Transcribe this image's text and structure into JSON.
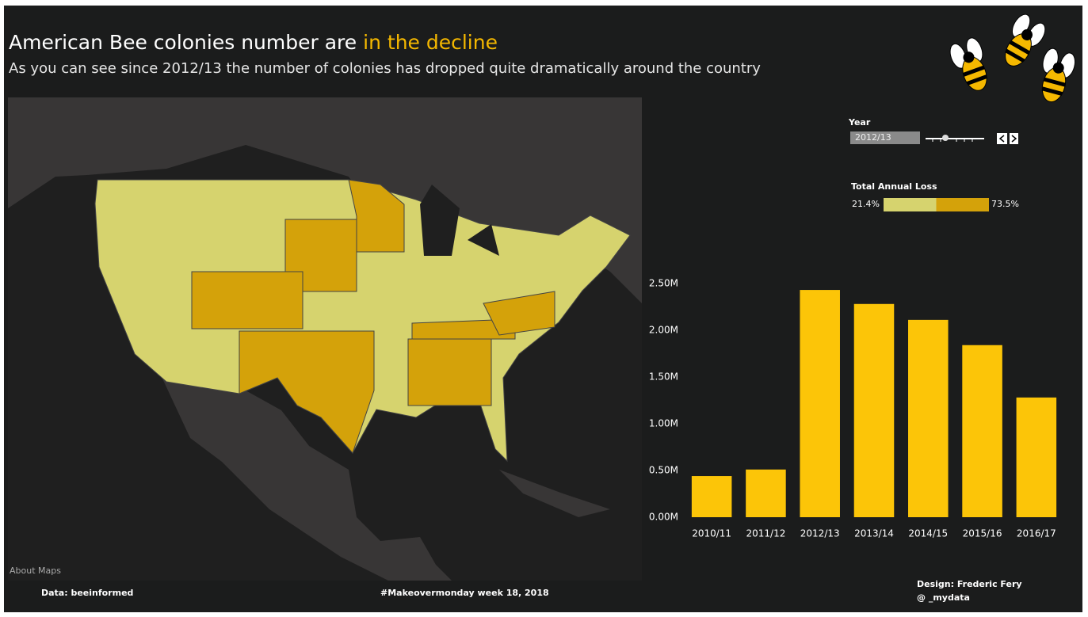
{
  "header": {
    "title_main": "American Bee colonies number are",
    "title_highlight": "in the decline",
    "subtitle": "As you can see since 2012/13 the number of colonies has dropped quite dramatically around the country"
  },
  "controls": {
    "year_label": "Year",
    "year_value": "2012/13"
  },
  "legend": {
    "title": "Total Annual Loss",
    "min_label": "21.4%",
    "max_label": "73.5%"
  },
  "map": {
    "credit": "About Maps"
  },
  "chart_data": {
    "type": "bar",
    "categories": [
      "2010/11",
      "2011/12",
      "2012/13",
      "2013/14",
      "2014/15",
      "2015/16",
      "2016/17"
    ],
    "values": [
      0.44,
      0.51,
      2.43,
      2.28,
      2.11,
      1.84,
      1.28
    ],
    "color": "#fcc508",
    "ylim": [
      0,
      2.6
    ],
    "yticks": [
      {
        "value": 0,
        "label": "0.00M"
      },
      {
        "value": 0.5,
        "label": "0.50M"
      },
      {
        "value": 1,
        "label": "1.00M"
      },
      {
        "value": 1.5,
        "label": "1.50M"
      },
      {
        "value": 2,
        "label": "2.00M"
      },
      {
        "value": 2.5,
        "label": "2.50M"
      }
    ],
    "grid": false
  },
  "footer": {
    "source": "Data: beeinformed",
    "tag": "#Makeovermonday week 18, 2018",
    "design": "Design: Frederic Fery",
    "handle": "@ _mydata"
  }
}
